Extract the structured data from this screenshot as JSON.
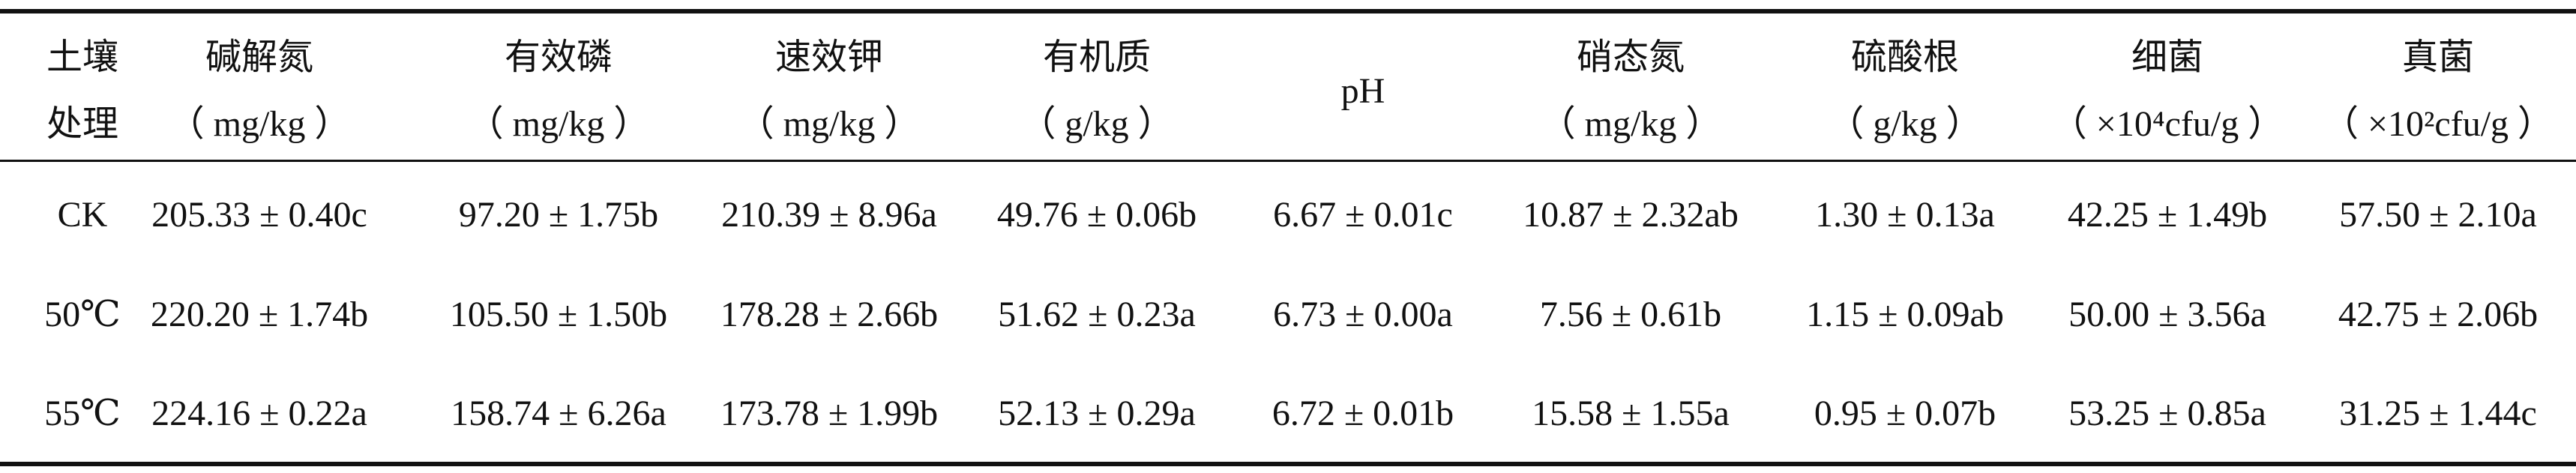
{
  "table": {
    "header": [
      [
        "土壤",
        "处理"
      ],
      [
        "碱解氮",
        "（ mg/kg ）"
      ],
      [
        "有效磷",
        "（ mg/kg ）"
      ],
      [
        "速效钾",
        "（ mg/kg ）"
      ],
      [
        "有机质",
        "（ g/kg ）"
      ],
      [
        "pH"
      ],
      [
        "硝态氮",
        "（ mg/kg ）"
      ],
      [
        "硫酸根",
        "（ g/kg ）"
      ],
      [
        "细菌",
        "（ ×10⁴cfu/g ）"
      ],
      [
        "真菌",
        "（ ×10²cfu/g ）"
      ]
    ],
    "rows": [
      [
        "CK",
        "205.33 ± 0.40c",
        "97.20 ± 1.75b",
        "210.39 ± 8.96a",
        "49.76 ± 0.06b",
        "6.67 ± 0.01c",
        "10.87 ± 2.32ab",
        "1.30 ± 0.13a",
        "42.25 ± 1.49b",
        "57.50 ± 2.10a"
      ],
      [
        "50℃",
        "220.20 ± 1.74b",
        "105.50 ± 1.50b",
        "178.28 ± 2.66b",
        "51.62 ± 0.23a",
        "6.73 ± 0.00a",
        "7.56 ± 0.61b",
        "1.15 ± 0.09ab",
        "50.00 ± 3.56a",
        "42.75 ± 2.06b"
      ],
      [
        "55℃",
        "224.16 ± 0.22a",
        "158.74 ± 6.26a",
        "173.78 ± 1.99b",
        "52.13 ± 0.29a",
        "6.72 ± 0.01b",
        "15.58 ± 1.55a",
        "0.95 ± 0.07b",
        "53.25 ± 0.85a",
        "31.25 ± 1.44c"
      ]
    ]
  }
}
